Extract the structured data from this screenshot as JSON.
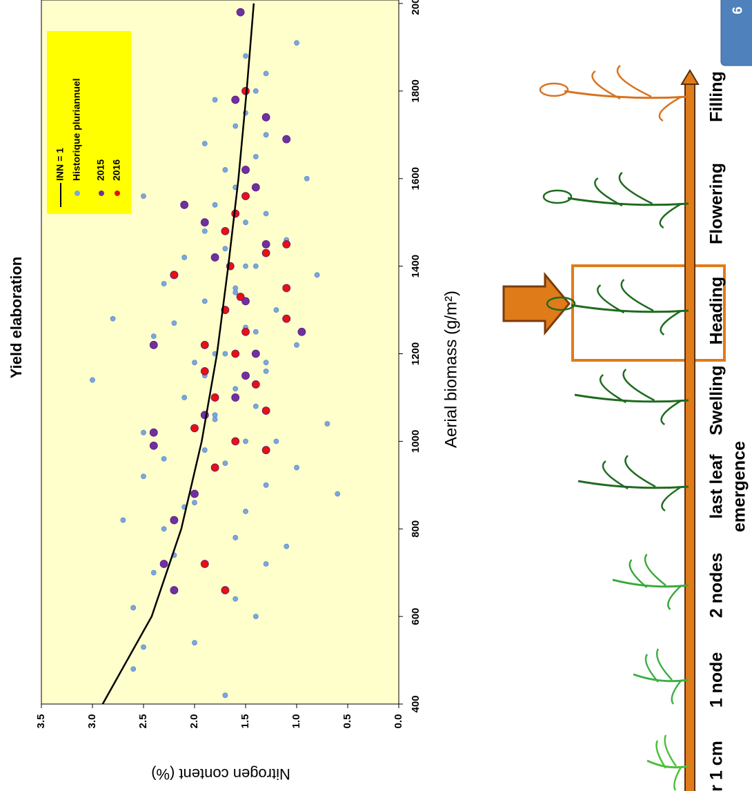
{
  "chart_data": {
    "type": "scatter",
    "title": "Yield elaboration",
    "x_label": "Aerial biomass (g/m²)",
    "y_label": "Nitrogen content (%)",
    "xlim": [
      400,
      2000
    ],
    "xticks": [
      400,
      600,
      800,
      1000,
      1200,
      1400,
      1600,
      1800,
      2000
    ],
    "ylim": [
      0,
      3.5
    ],
    "yticks": [
      {
        "value": 0,
        "label": "0.0"
      },
      {
        "value": 0.5,
        "label": "0.5"
      },
      {
        "value": 1,
        "label": "1.0"
      },
      {
        "value": 1.5,
        "label": "1.5"
      },
      {
        "value": 2,
        "label": "2.0"
      },
      {
        "value": 2.5,
        "label": "2.5"
      },
      {
        "value": 3,
        "label": "3.0"
      },
      {
        "value": 3.5,
        "label": "3.5"
      }
    ],
    "series": [
      {
        "name": "INN = 1",
        "kind": "line",
        "color": "#000000",
        "x": [
          400,
          600,
          800,
          1000,
          1200,
          1400,
          1600,
          1800,
          2000
        ],
        "values": [
          2.9,
          2.42,
          2.13,
          1.93,
          1.78,
          1.67,
          1.57,
          1.49,
          1.42
        ]
      },
      {
        "name": "Historique pluriannuel",
        "kind": "points",
        "color": "#7ba7dc",
        "x": [
          420,
          480,
          530,
          540,
          600,
          620,
          640,
          660,
          700,
          720,
          740,
          760,
          780,
          800,
          820,
          840,
          860,
          880,
          900,
          920,
          940,
          960,
          980,
          1000,
          1020,
          1040,
          1060,
          1080,
          1100,
          1120,
          1140,
          1160,
          1180,
          1200,
          1220,
          1240,
          1260,
          1280,
          1300,
          1320,
          1340,
          1360,
          1380,
          1400,
          1420,
          1440,
          1460,
          1480,
          1500,
          1520,
          1540,
          1560,
          1580,
          1600,
          1620,
          1650,
          1680,
          1700,
          1720,
          1750,
          1780,
          1800,
          1840,
          1880,
          1910,
          1000,
          1100,
          1200,
          1300,
          1400,
          1150,
          1250,
          1350,
          1050,
          950,
          850,
          1270,
          1180
        ],
        "values": [
          1.7,
          2.6,
          2.5,
          2.0,
          1.4,
          2.6,
          1.6,
          1.7,
          2.4,
          1.3,
          2.2,
          1.1,
          1.6,
          2.3,
          2.7,
          1.5,
          2.0,
          0.6,
          1.3,
          2.5,
          1.0,
          2.3,
          1.9,
          1.2,
          2.5,
          0.7,
          1.8,
          1.4,
          2.1,
          1.6,
          3.0,
          1.3,
          2.0,
          1.7,
          1.0,
          2.4,
          1.5,
          2.8,
          1.2,
          1.9,
          1.6,
          2.3,
          0.8,
          1.4,
          2.1,
          1.7,
          1.1,
          1.9,
          1.5,
          1.3,
          1.8,
          2.5,
          1.6,
          0.9,
          1.7,
          1.4,
          1.9,
          1.3,
          1.6,
          1.5,
          1.8,
          1.4,
          1.3,
          1.5,
          1.0,
          1.5,
          1.6,
          1.8,
          1.7,
          1.5,
          1.9,
          1.4,
          1.6,
          1.8,
          1.7,
          2.1,
          2.2,
          1.3
        ]
      },
      {
        "name": "2015",
        "kind": "points",
        "color": "#7030a0",
        "x": [
          660,
          720,
          820,
          880,
          990,
          1020,
          1060,
          1100,
          1150,
          1200,
          1220,
          1250,
          1280,
          1320,
          1380,
          1420,
          1450,
          1500,
          1540,
          1580,
          1620,
          1690,
          1740,
          1780,
          1980
        ],
        "values": [
          2.2,
          2.3,
          2.2,
          2.0,
          2.4,
          2.4,
          1.9,
          1.6,
          1.5,
          1.4,
          2.4,
          0.95,
          1.1,
          1.5,
          2.2,
          1.8,
          1.3,
          1.9,
          2.1,
          1.4,
          1.5,
          1.1,
          1.3,
          1.6,
          1.55
        ]
      },
      {
        "name": "2016",
        "kind": "points",
        "color": "#e81010",
        "x": [
          660,
          720,
          940,
          980,
          1000,
          1030,
          1070,
          1100,
          1130,
          1160,
          1200,
          1220,
          1250,
          1280,
          1300,
          1330,
          1350,
          1380,
          1400,
          1430,
          1450,
          1480,
          1520,
          1560,
          1800
        ],
        "values": [
          1.7,
          1.9,
          1.8,
          1.3,
          1.6,
          2.0,
          1.3,
          1.8,
          1.4,
          1.9,
          1.6,
          1.9,
          1.5,
          1.1,
          1.7,
          1.55,
          1.1,
          2.2,
          1.65,
          1.3,
          1.1,
          1.7,
          1.6,
          1.5,
          1.5
        ]
      }
    ]
  },
  "stages": [
    [
      "r 1 cm"
    ],
    [
      "1 node"
    ],
    [
      "2 nodes"
    ],
    [
      "last leaf",
      "emergence"
    ],
    [
      "Swelling"
    ],
    [
      "Heading"
    ],
    [
      "Flowering"
    ],
    [
      "Filling"
    ]
  ],
  "slide_number": "6"
}
